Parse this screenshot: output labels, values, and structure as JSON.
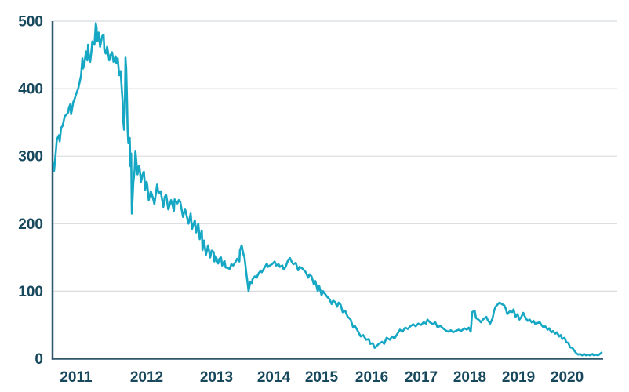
{
  "figure": {
    "background": "#ffffff"
  },
  "colors": {
    "line": "#15a7c4",
    "tick_text": "#17485c",
    "axis": "#2e576b",
    "grid": "#d8dcdf"
  },
  "chart_data": {
    "type": "line",
    "title": "",
    "grid": "horizontal-only",
    "legend": "none",
    "ylim": [
      0,
      500
    ],
    "xlim": [
      2010.68,
      2020.71
    ],
    "y_ticks": [
      0,
      100,
      200,
      300,
      400,
      500
    ],
    "x_ticks": [
      {
        "label": "2011",
        "year": 2011
      },
      {
        "label": "2012",
        "year": 2012
      },
      {
        "label": "2013",
        "year": 2013
      },
      {
        "label": "2014",
        "year": 2014
      },
      {
        "label": "2015",
        "year": 2015
      },
      {
        "label": "2016",
        "year": 2016
      },
      {
        "label": "2017",
        "year": 2017
      },
      {
        "label": "2018",
        "year": 2018
      },
      {
        "label": "2019",
        "year": 2019
      },
      {
        "label": "2020",
        "year": 2020
      }
    ],
    "x_axis_anchors": [
      [
        2010.68,
        0.0014
      ],
      [
        2011,
        0.0427
      ],
      [
        2012,
        0.1709
      ],
      [
        2013,
        0.2977
      ],
      [
        2014,
        0.4017
      ],
      [
        2015,
        0.4886
      ],
      [
        2016,
        0.5798
      ],
      [
        2017,
        0.6695
      ],
      [
        2018,
        0.7578
      ],
      [
        2019,
        0.8462
      ],
      [
        2020,
        0.9345
      ],
      [
        2020.71,
        0.9972
      ]
    ],
    "points": [
      [
        2010.68,
        290
      ],
      [
        2010.69,
        278
      ],
      [
        2010.71,
        300
      ],
      [
        2010.73,
        325
      ],
      [
        2010.76,
        331
      ],
      [
        2010.77,
        322
      ],
      [
        2010.79,
        342
      ],
      [
        2010.81,
        345
      ],
      [
        2010.84,
        359
      ],
      [
        2010.87,
        362
      ],
      [
        2010.89,
        365
      ],
      [
        2010.9,
        372
      ],
      [
        2010.92,
        377
      ],
      [
        2010.93,
        362
      ],
      [
        2010.96,
        380
      ],
      [
        2010.98,
        385
      ],
      [
        2011.0,
        392
      ],
      [
        2011.03,
        400
      ],
      [
        2011.07,
        419
      ],
      [
        2011.09,
        445
      ],
      [
        2011.1,
        430
      ],
      [
        2011.12,
        438
      ],
      [
        2011.14,
        455
      ],
      [
        2011.16,
        442
      ],
      [
        2011.17,
        465
      ],
      [
        2011.18,
        450
      ],
      [
        2011.2,
        440
      ],
      [
        2011.22,
        458
      ],
      [
        2011.23,
        470
      ],
      [
        2011.26,
        465
      ],
      [
        2011.28,
        497
      ],
      [
        2011.29,
        490
      ],
      [
        2011.3,
        470
      ],
      [
        2011.32,
        483
      ],
      [
        2011.34,
        462
      ],
      [
        2011.37,
        478
      ],
      [
        2011.39,
        480
      ],
      [
        2011.4,
        457
      ],
      [
        2011.42,
        452
      ],
      [
        2011.44,
        462
      ],
      [
        2011.47,
        442
      ],
      [
        2011.49,
        450
      ],
      [
        2011.51,
        454
      ],
      [
        2011.53,
        440
      ],
      [
        2011.56,
        448
      ],
      [
        2011.57,
        438
      ],
      [
        2011.59,
        445
      ],
      [
        2011.61,
        420
      ],
      [
        2011.63,
        426
      ],
      [
        2011.66,
        380
      ],
      [
        2011.67,
        350
      ],
      [
        2011.68,
        339
      ],
      [
        2011.69,
        365
      ],
      [
        2011.7,
        446
      ],
      [
        2011.71,
        430
      ],
      [
        2011.72,
        390
      ],
      [
        2011.73,
        340
      ],
      [
        2011.74,
        319
      ],
      [
        2011.76,
        327
      ],
      [
        2011.77,
        285
      ],
      [
        2011.78,
        304
      ],
      [
        2011.79,
        215
      ],
      [
        2011.81,
        260
      ],
      [
        2011.83,
        281
      ],
      [
        2011.84,
        308
      ],
      [
        2011.87,
        273
      ],
      [
        2011.89,
        285
      ],
      [
        2011.9,
        282
      ],
      [
        2011.92,
        262
      ],
      [
        2011.94,
        272
      ],
      [
        2011.96,
        277
      ],
      [
        2011.98,
        250
      ],
      [
        2012.0,
        262
      ],
      [
        2012.01,
        256
      ],
      [
        2012.03,
        235
      ],
      [
        2012.06,
        248
      ],
      [
        2012.09,
        238
      ],
      [
        2012.11,
        229
      ],
      [
        2012.15,
        258
      ],
      [
        2012.17,
        245
      ],
      [
        2012.2,
        248
      ],
      [
        2012.24,
        225
      ],
      [
        2012.26,
        240
      ],
      [
        2012.28,
        242
      ],
      [
        2012.31,
        221
      ],
      [
        2012.35,
        235
      ],
      [
        2012.37,
        228
      ],
      [
        2012.39,
        219
      ],
      [
        2012.4,
        236
      ],
      [
        2012.44,
        230
      ],
      [
        2012.46,
        235
      ],
      [
        2012.48,
        233
      ],
      [
        2012.52,
        210
      ],
      [
        2012.55,
        222
      ],
      [
        2012.6,
        200
      ],
      [
        2012.63,
        215
      ],
      [
        2012.65,
        192
      ],
      [
        2012.69,
        205
      ],
      [
        2012.71,
        187
      ],
      [
        2012.74,
        200
      ],
      [
        2012.76,
        177
      ],
      [
        2012.79,
        190
      ],
      [
        2012.8,
        161
      ],
      [
        2012.82,
        175
      ],
      [
        2012.85,
        154
      ],
      [
        2012.88,
        168
      ],
      [
        2012.91,
        150
      ],
      [
        2012.93,
        160
      ],
      [
        2012.96,
        158
      ],
      [
        2012.97,
        144
      ],
      [
        2012.99,
        152
      ],
      [
        2013.03,
        141
      ],
      [
        2013.05,
        148
      ],
      [
        2013.08,
        150
      ],
      [
        2013.1,
        138
      ],
      [
        2013.14,
        145
      ],
      [
        2013.16,
        135
      ],
      [
        2013.19,
        135
      ],
      [
        2013.23,
        133
      ],
      [
        2013.26,
        140
      ],
      [
        2013.29,
        138
      ],
      [
        2013.33,
        143
      ],
      [
        2013.36,
        148
      ],
      [
        2013.4,
        144
      ],
      [
        2013.41,
        160
      ],
      [
        2013.44,
        168
      ],
      [
        2013.47,
        155
      ],
      [
        2013.49,
        150
      ],
      [
        2013.52,
        128
      ],
      [
        2013.55,
        108
      ],
      [
        2013.56,
        100
      ],
      [
        2013.59,
        114
      ],
      [
        2013.62,
        112
      ],
      [
        2013.63,
        118
      ],
      [
        2013.67,
        122
      ],
      [
        2013.7,
        120
      ],
      [
        2013.74,
        127
      ],
      [
        2013.77,
        130
      ],
      [
        2013.79,
        128
      ],
      [
        2013.84,
        135
      ],
      [
        2013.88,
        141
      ],
      [
        2013.9,
        136
      ],
      [
        2013.93,
        138
      ],
      [
        2013.97,
        140
      ],
      [
        2014.02,
        144
      ],
      [
        2014.05,
        138
      ],
      [
        2014.1,
        140
      ],
      [
        2014.13,
        136
      ],
      [
        2014.18,
        138
      ],
      [
        2014.21,
        132
      ],
      [
        2014.25,
        136
      ],
      [
        2014.3,
        146
      ],
      [
        2014.34,
        149
      ],
      [
        2014.38,
        143
      ],
      [
        2014.41,
        140
      ],
      [
        2014.46,
        142
      ],
      [
        2014.51,
        131
      ],
      [
        2014.54,
        136
      ],
      [
        2014.59,
        134
      ],
      [
        2014.62,
        132
      ],
      [
        2014.67,
        128
      ],
      [
        2014.72,
        120
      ],
      [
        2014.75,
        125
      ],
      [
        2014.79,
        122
      ],
      [
        2014.84,
        110
      ],
      [
        2014.87,
        115
      ],
      [
        2014.92,
        100
      ],
      [
        2014.95,
        108
      ],
      [
        2015.0,
        94
      ],
      [
        2015.03,
        100
      ],
      [
        2015.06,
        97
      ],
      [
        2015.11,
        92
      ],
      [
        2015.16,
        88
      ],
      [
        2015.2,
        81
      ],
      [
        2015.23,
        86
      ],
      [
        2015.27,
        84
      ],
      [
        2015.31,
        77
      ],
      [
        2015.34,
        83
      ],
      [
        2015.38,
        80
      ],
      [
        2015.42,
        69
      ],
      [
        2015.47,
        71
      ],
      [
        2015.52,
        62
      ],
      [
        2015.58,
        58
      ],
      [
        2015.63,
        46
      ],
      [
        2015.67,
        48
      ],
      [
        2015.73,
        40
      ],
      [
        2015.78,
        33
      ],
      [
        2015.83,
        35
      ],
      [
        2015.89,
        28
      ],
      [
        2015.94,
        29
      ],
      [
        2015.97,
        22
      ],
      [
        2016.02,
        23
      ],
      [
        2016.06,
        16
      ],
      [
        2016.09,
        18
      ],
      [
        2016.14,
        22
      ],
      [
        2016.21,
        25
      ],
      [
        2016.25,
        22
      ],
      [
        2016.3,
        31
      ],
      [
        2016.37,
        28
      ],
      [
        2016.41,
        33
      ],
      [
        2016.46,
        30
      ],
      [
        2016.52,
        37
      ],
      [
        2016.57,
        43
      ],
      [
        2016.62,
        40
      ],
      [
        2016.68,
        46
      ],
      [
        2016.73,
        44
      ],
      [
        2016.78,
        48
      ],
      [
        2016.84,
        51
      ],
      [
        2016.89,
        48
      ],
      [
        2016.94,
        52
      ],
      [
        2017.0,
        50
      ],
      [
        2017.05,
        54
      ],
      [
        2017.1,
        52
      ],
      [
        2017.13,
        58
      ],
      [
        2017.18,
        54
      ],
      [
        2017.24,
        51
      ],
      [
        2017.29,
        54
      ],
      [
        2017.34,
        46
      ],
      [
        2017.39,
        49
      ],
      [
        2017.45,
        45
      ],
      [
        2017.5,
        42
      ],
      [
        2017.56,
        40
      ],
      [
        2017.61,
        42
      ],
      [
        2017.66,
        39
      ],
      [
        2017.71,
        41
      ],
      [
        2017.77,
        43
      ],
      [
        2017.82,
        41
      ],
      [
        2017.89,
        45
      ],
      [
        2017.94,
        43
      ],
      [
        2017.98,
        46
      ],
      [
        2018.02,
        40
      ],
      [
        2018.05,
        69
      ],
      [
        2018.1,
        71
      ],
      [
        2018.13,
        60
      ],
      [
        2018.18,
        58
      ],
      [
        2018.23,
        54
      ],
      [
        2018.27,
        58
      ],
      [
        2018.34,
        62
      ],
      [
        2018.37,
        57
      ],
      [
        2018.42,
        52
      ],
      [
        2018.47,
        60
      ],
      [
        2018.5,
        71
      ],
      [
        2018.53,
        77
      ],
      [
        2018.58,
        81
      ],
      [
        2018.61,
        83
      ],
      [
        2018.66,
        81
      ],
      [
        2018.71,
        79
      ],
      [
        2018.74,
        74
      ],
      [
        2018.77,
        66
      ],
      [
        2018.82,
        70
      ],
      [
        2018.87,
        69
      ],
      [
        2018.9,
        73
      ],
      [
        2018.94,
        62
      ],
      [
        2018.98,
        66
      ],
      [
        2019.02,
        58
      ],
      [
        2019.06,
        62
      ],
      [
        2019.1,
        68
      ],
      [
        2019.15,
        60
      ],
      [
        2019.19,
        56
      ],
      [
        2019.23,
        58
      ],
      [
        2019.27,
        54
      ],
      [
        2019.31,
        56
      ],
      [
        2019.35,
        51
      ],
      [
        2019.39,
        53
      ],
      [
        2019.44,
        54
      ],
      [
        2019.47,
        50
      ],
      [
        2019.52,
        46
      ],
      [
        2019.55,
        48
      ],
      [
        2019.6,
        43
      ],
      [
        2019.63,
        45
      ],
      [
        2019.68,
        39
      ],
      [
        2019.71,
        41
      ],
      [
        2019.76,
        37
      ],
      [
        2019.79,
        39
      ],
      [
        2019.84,
        33
      ],
      [
        2019.87,
        35
      ],
      [
        2019.9,
        29
      ],
      [
        2019.95,
        31
      ],
      [
        2019.98,
        25
      ],
      [
        2020.03,
        23
      ],
      [
        2020.06,
        17
      ],
      [
        2020.11,
        16
      ],
      [
        2020.15,
        12
      ],
      [
        2020.19,
        8
      ],
      [
        2020.23,
        6
      ],
      [
        2020.27,
        7
      ],
      [
        2020.31,
        5
      ],
      [
        2020.35,
        7
      ],
      [
        2020.39,
        5
      ],
      [
        2020.44,
        6
      ],
      [
        2020.47,
        5
      ],
      [
        2020.52,
        7
      ],
      [
        2020.55,
        5
      ],
      [
        2020.6,
        6
      ],
      [
        2020.63,
        5
      ],
      [
        2020.66,
        6
      ],
      [
        2020.71,
        9
      ]
    ]
  }
}
